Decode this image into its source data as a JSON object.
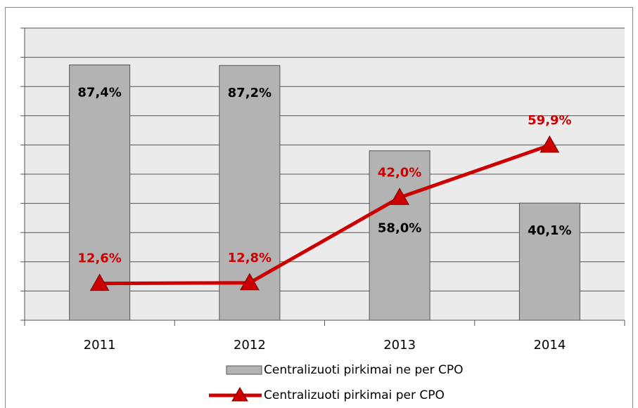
{
  "chart_data": {
    "type": "bar_line",
    "categories": [
      "2011",
      "2012",
      "2013",
      "2014"
    ],
    "series": [
      {
        "name": "Centralizuoti pirkimai ne per CPO",
        "type": "bar",
        "color": "#b3b3b3",
        "values": [
          87.4,
          87.2,
          58.0,
          40.1
        ],
        "value_labels": [
          "87,4%",
          "87,2%",
          "58,0%",
          "40,1%"
        ]
      },
      {
        "name": "Centralizuoti pirkimai per CPO",
        "type": "line",
        "color": "#cc0000",
        "values": [
          12.6,
          12.8,
          42.0,
          59.9
        ],
        "value_labels": [
          "12,6%",
          "12,8%",
          "42,0%",
          "59,9%"
        ]
      }
    ],
    "ylim": [
      0,
      100
    ],
    "yticks": [
      0,
      10,
      20,
      30,
      40,
      50,
      60,
      70,
      80,
      90,
      100
    ],
    "grid": true,
    "legend": "bottom"
  }
}
